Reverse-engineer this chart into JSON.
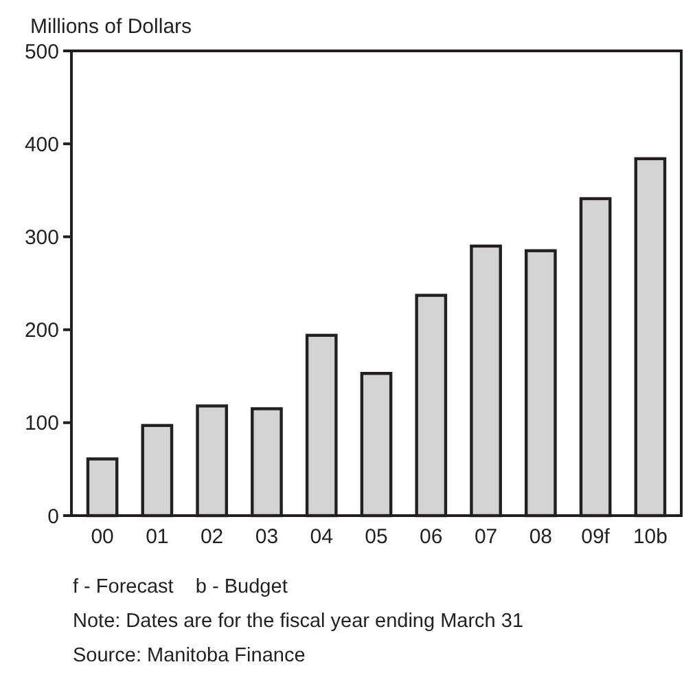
{
  "chart_data": {
    "type": "bar",
    "ylabel": "Millions of Dollars",
    "categories": [
      "00",
      "01",
      "02",
      "03",
      "04",
      "05",
      "06",
      "07",
      "08",
      "09f",
      "10b"
    ],
    "values": [
      61,
      97,
      118,
      115,
      194,
      153,
      237,
      290,
      285,
      341,
      384
    ],
    "color": "#d4d4d6",
    "ylim": [
      0,
      500
    ],
    "yticks": [
      0,
      100,
      200,
      300,
      400,
      500
    ],
    "grid": false,
    "annotations": [
      "f - Forecast    b - Budget",
      "Note: Dates are for the fiscal year ending March 31",
      "Source: Manitoba Finance"
    ]
  }
}
